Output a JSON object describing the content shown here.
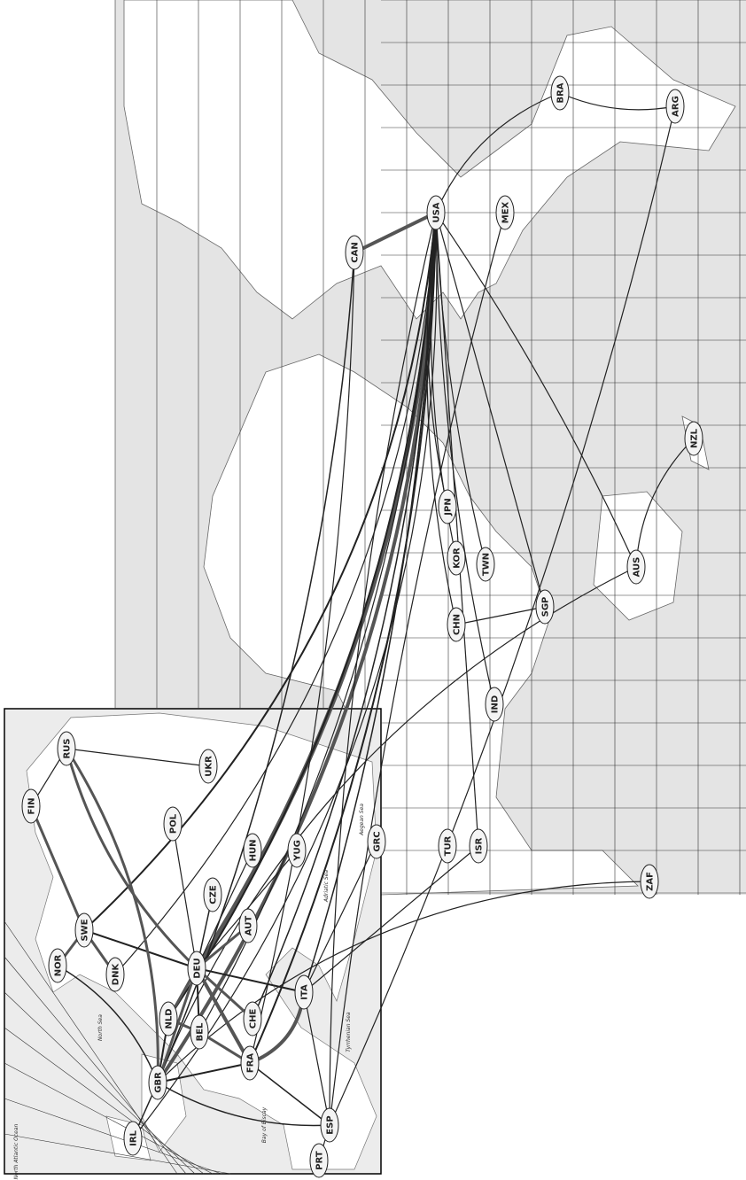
{
  "nodes": [
    {
      "label": "BRA"
    },
    {
      "label": "ARG"
    },
    {
      "label": "USA"
    },
    {
      "label": "MEX"
    },
    {
      "label": "CAN"
    },
    {
      "label": "JPN"
    },
    {
      "label": "KOR"
    },
    {
      "label": "TWN"
    },
    {
      "label": "NZL"
    },
    {
      "label": "AUS"
    },
    {
      "label": "SGP"
    },
    {
      "label": "CHN"
    },
    {
      "label": "IND"
    },
    {
      "label": "TUR"
    },
    {
      "label": "ISR"
    },
    {
      "label": "GRC"
    },
    {
      "label": "ZAF"
    },
    {
      "label": "RUS"
    },
    {
      "label": "UKR"
    },
    {
      "label": "FIN"
    },
    {
      "label": "POL"
    },
    {
      "label": "HUN"
    },
    {
      "label": "YUG"
    },
    {
      "label": "CZE"
    },
    {
      "label": "SWE"
    },
    {
      "label": "AUT"
    },
    {
      "label": "NOR"
    },
    {
      "label": "DNK"
    },
    {
      "label": "DEU"
    },
    {
      "label": "ITA"
    },
    {
      "label": "NLD"
    },
    {
      "label": "CHE"
    },
    {
      "label": "BEL"
    },
    {
      "label": "FRA"
    },
    {
      "label": "GBR"
    },
    {
      "label": "IRL"
    },
    {
      "label": "ESP"
    },
    {
      "label": "PRT"
    }
  ],
  "seas": [
    {
      "label": "North Atlantic Ocean"
    },
    {
      "label": "North Sea"
    },
    {
      "label": "Bay of Biscay"
    },
    {
      "label": "Adriatic Sea"
    },
    {
      "label": "Tyrrhenian Sea"
    },
    {
      "label": "Aegean Sea"
    }
  ]
}
